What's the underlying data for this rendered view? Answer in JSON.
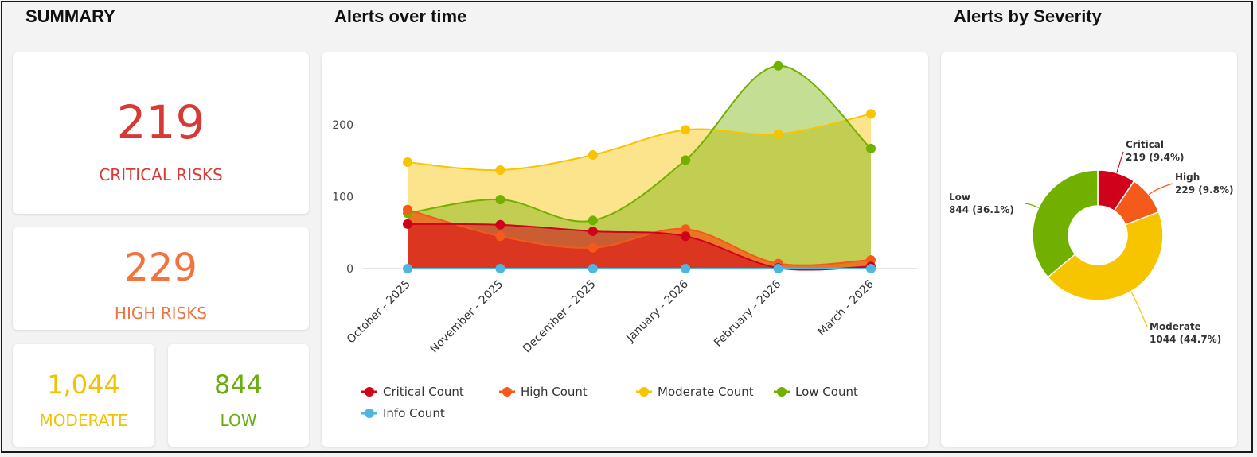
{
  "colors": {
    "critical": "#d0021b",
    "high": "#f55a1a",
    "moderate": "#f7c400",
    "low": "#72b000",
    "info": "#4eb6e0",
    "critical_text": "#d73a34",
    "high_text": "#f2733d",
    "moderate_text": "#f2c200",
    "low_text": "#6aad12"
  },
  "summary": {
    "title": "SUMMARY",
    "critical": {
      "value": "219",
      "label": "CRITICAL RISKS"
    },
    "high": {
      "value": "229",
      "label": "HIGH RISKS"
    },
    "moderate": {
      "value": "1,044",
      "label": "MODERATE"
    },
    "low": {
      "value": "844",
      "label": "LOW"
    }
  },
  "alerts_over_time_title": "Alerts over time",
  "alerts_by_severity_title": "Alerts by Severity",
  "chart_data": [
    {
      "type": "area",
      "title": "Alerts over time",
      "categories": [
        "October - 2025",
        "November - 2025",
        "December - 2025",
        "January - 2026",
        "February - 2026",
        "March - 2026"
      ],
      "yticks": [
        0,
        100,
        200
      ],
      "ylim": [
        0,
        300
      ],
      "series": [
        {
          "name": "Moderate Count",
          "key": "moderate",
          "values": [
            148,
            137,
            158,
            193,
            187,
            215
          ]
        },
        {
          "name": "Low Count",
          "key": "low",
          "values": [
            77,
            96,
            67,
            151,
            282,
            167
          ]
        },
        {
          "name": "High Count",
          "key": "high",
          "values": [
            82,
            45,
            29,
            55,
            7,
            12
          ]
        },
        {
          "name": "Critical Count",
          "key": "critical",
          "values": [
            62,
            61,
            52,
            45,
            1,
            3
          ]
        },
        {
          "name": "Info Count",
          "key": "info",
          "values": [
            0,
            0,
            0,
            0,
            0,
            0
          ]
        }
      ],
      "legend": [
        "Critical Count",
        "High Count",
        "Moderate Count",
        "Low Count",
        "Info Count"
      ],
      "legend_keys": [
        "critical",
        "high",
        "moderate",
        "low",
        "info"
      ]
    },
    {
      "type": "pie",
      "variant": "donut",
      "title": "Alerts by Severity",
      "slices": [
        {
          "name": "Critical",
          "key": "critical",
          "value": 219,
          "label": "219 (9.4%)"
        },
        {
          "name": "High",
          "key": "high",
          "value": 229,
          "label": "229 (9.8%)"
        },
        {
          "name": "Moderate",
          "key": "moderate",
          "value": 1044,
          "label": "1044 (44.7%)"
        },
        {
          "name": "Low",
          "key": "low",
          "value": 844,
          "label": "844 (36.1%)"
        }
      ]
    }
  ]
}
